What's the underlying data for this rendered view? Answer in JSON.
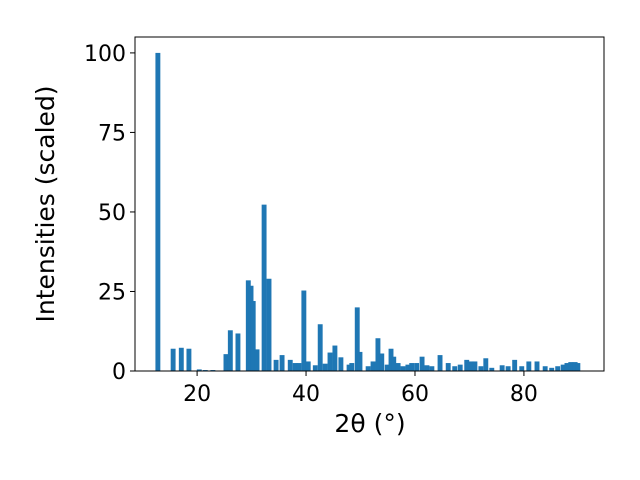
{
  "chart_data": {
    "type": "bar",
    "xlabel": "2θ (°)",
    "ylabel": "Intensities (scaled)",
    "color": "#1f77b4",
    "x": [
      12.8,
      15.6,
      17.1,
      18.5,
      20.4,
      21.5,
      22.9,
      25.3,
      26.1,
      27.5,
      29.4,
      29.9,
      30.3,
      31.0,
      32.3,
      33.2,
      34.5,
      35.6,
      37.1,
      38.0,
      38.7,
      39.6,
      40.4,
      41.7,
      42.6,
      43.5,
      44.4,
      45.3,
      46.4,
      47.9,
      48.4,
      49.4,
      49.9,
      51.4,
      52.3,
      53.2,
      53.9,
      54.9,
      55.6,
      56.1,
      56.9,
      57.8,
      58.7,
      59.4,
      60.3,
      61.3,
      62.2,
      63.1,
      64.6,
      66.1,
      67.3,
      68.3,
      69.5,
      70.3,
      71.0,
      72.1,
      73.0,
      74.1,
      76.0,
      77.1,
      78.3,
      79.6,
      80.9,
      82.4,
      83.9,
      85.1,
      86.2,
      87.2,
      87.9,
      88.6,
      89.4,
      89.9
    ],
    "values": [
      100,
      7,
      7.3,
      7,
      0.5,
      0.3,
      0.3,
      5.3,
      12.8,
      11.8,
      28.5,
      26.8,
      22,
      6.8,
      52.3,
      29,
      3.5,
      5,
      3.5,
      2.5,
      2.5,
      25.3,
      3,
      1.8,
      14.7,
      2.3,
      5.8,
      8,
      4.3,
      2,
      2.5,
      20,
      6,
      1.5,
      3,
      10.3,
      5.5,
      2,
      7,
      4.5,
      2.5,
      1.5,
      2,
      2.5,
      2.5,
      4.5,
      1.8,
      1.5,
      5,
      2.5,
      1.5,
      2,
      3.5,
      3,
      3,
      1.5,
      4,
      1,
      1.8,
      1.5,
      3.5,
      1.5,
      3,
      3,
      1.5,
      1,
      1.5,
      2,
      2.5,
      2.8,
      2.8,
      2.5
    ],
    "xlim": [
      8.6,
      94.7
    ],
    "xticks": [
      20,
      40,
      60,
      80
    ],
    "ylim": [
      0,
      105
    ],
    "yticks": [
      0,
      25,
      50,
      75,
      100
    ]
  }
}
